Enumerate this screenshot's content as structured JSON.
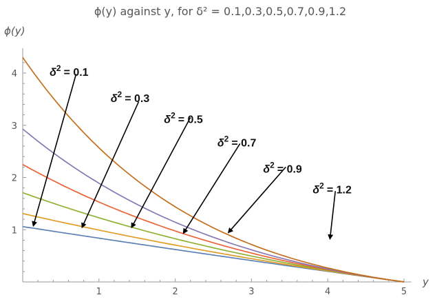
{
  "chart_data": {
    "type": "line",
    "title": "ϕ(y) against  y, for  δ² = 0.1,0.3,0.5,0.7,0.9,1.2",
    "xlabel": "y",
    "ylabel": "ϕ(y)",
    "xlim": [
      0,
      5.05
    ],
    "ylim": [
      0,
      4.4
    ],
    "x_ticks": [
      1,
      2,
      3,
      4,
      5
    ],
    "y_ticks": [
      1,
      2,
      3,
      4
    ],
    "grid": false,
    "x_end": 5,
    "series": [
      {
        "name": "δ² = 0.1",
        "color": "#5e81b5",
        "y0": 1.06
      },
      {
        "name": "δ² = 0.3",
        "color": "#e19c24",
        "y0": 1.31
      },
      {
        "name": "δ² = 0.5",
        "color": "#8fb032",
        "y0": 1.71
      },
      {
        "name": "δ² = 0.7",
        "color": "#eb6235",
        "y0": 2.25
      },
      {
        "name": "δ² = 0.9",
        "color": "#8778b3",
        "y0": 2.93
      },
      {
        "name": "δ² = 1.2",
        "color": "#c56e1a",
        "y0": 4.3
      }
    ],
    "annotations": [
      {
        "base": "δ",
        "sup": "2",
        "eq": "= 0.1",
        "text_at": [
          0.75,
          4.05
        ],
        "arrow_from": [
          0.7,
          3.98
        ],
        "arrow_to": [
          0.14,
          1.08
        ]
      },
      {
        "base": "δ",
        "sup": "2",
        "eq": "= 0.3",
        "text_at": [
          1.55,
          3.55
        ],
        "arrow_from": [
          1.52,
          3.45
        ],
        "arrow_to": [
          0.78,
          1.05
        ]
      },
      {
        "base": "δ",
        "sup": "2",
        "eq": "= 0.5",
        "text_at": [
          2.25,
          3.15
        ],
        "arrow_from": [
          2.2,
          3.15
        ],
        "arrow_to": [
          1.43,
          1.05
        ]
      },
      {
        "base": "δ",
        "sup": "2",
        "eq": "= 0.7",
        "text_at": [
          2.95,
          2.7
        ],
        "arrow_from": [
          2.85,
          2.65
        ],
        "arrow_to": [
          2.11,
          0.94
        ]
      },
      {
        "base": "δ",
        "sup": "2",
        "eq": "= 0.9",
        "text_at": [
          3.55,
          2.2
        ],
        "arrow_from": [
          3.45,
          2.2
        ],
        "arrow_to": [
          2.7,
          0.95
        ]
      },
      {
        "base": "δ",
        "sup": "2",
        "eq": "= 1.2",
        "text_at": [
          4.2,
          1.8
        ],
        "arrow_from": [
          4.1,
          1.74
        ],
        "arrow_to": [
          4.03,
          0.83
        ]
      }
    ]
  }
}
